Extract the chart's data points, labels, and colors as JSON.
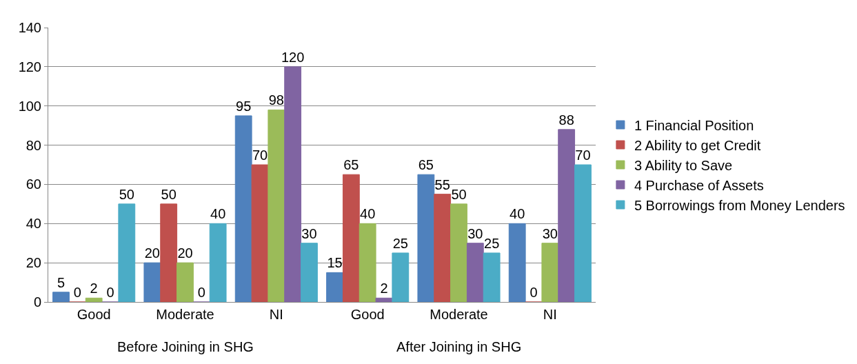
{
  "chart_data": {
    "type": "bar",
    "categories": [
      "Good",
      "Moderate",
      "NI",
      "Good",
      "Moderate",
      "NI"
    ],
    "series": [
      {
        "name": "1 Financial Position",
        "color": "#4f81bd",
        "values": [
          5,
          20,
          95,
          15,
          65,
          40
        ]
      },
      {
        "name": "2 Ability to get Credit",
        "color": "#c0504d",
        "values": [
          0,
          50,
          70,
          65,
          55,
          0
        ]
      },
      {
        "name": "3 Ability to Save",
        "color": "#9bbb59",
        "values": [
          2,
          20,
          98,
          40,
          50,
          30
        ]
      },
      {
        "name": "4 Purchase of Assets",
        "color": "#8064a2",
        "values": [
          0,
          0,
          120,
          2,
          30,
          88
        ]
      },
      {
        "name": "5 Borrowings from Money Lenders",
        "color": "#4bacc6",
        "values": [
          50,
          40,
          30,
          25,
          25,
          70
        ]
      }
    ],
    "annotations": [
      "Before Joining in SHG",
      "After Joining in SHG"
    ],
    "ylim": [
      0,
      140
    ],
    "yticks": [
      0,
      20,
      40,
      60,
      80,
      100,
      120,
      140
    ],
    "grid": "y",
    "legend": "right",
    "data_labels": true
  }
}
